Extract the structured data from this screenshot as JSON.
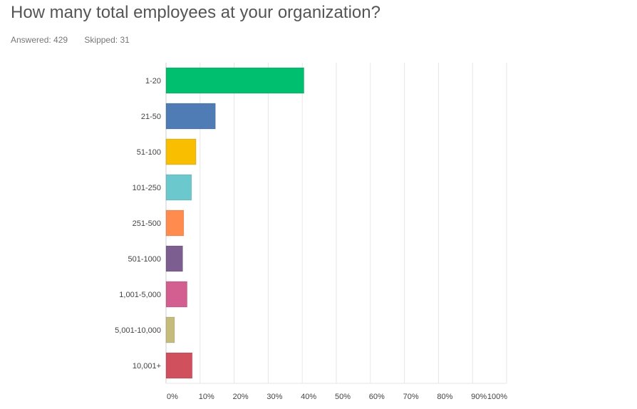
{
  "question": {
    "title": "How many total employees at your organization?",
    "answered": "Answered: 429",
    "skipped": "Skipped: 31"
  },
  "chart_data": {
    "type": "bar",
    "orientation": "horizontal",
    "categories": [
      "1-20",
      "21-50",
      "51-100",
      "101-250",
      "251-500",
      "501-1000",
      "1,001-5,000",
      "5,001-10,000",
      "10,001+"
    ],
    "values": [
      40.5,
      14.5,
      8.8,
      7.5,
      5.2,
      4.9,
      6.2,
      2.5,
      7.7
    ],
    "colors": [
      "#00bf6f",
      "#507cb6",
      "#f9be00",
      "#6bc8cd",
      "#ff8b4f",
      "#7d5e90",
      "#d25f90",
      "#c4bc78",
      "#d0505d"
    ],
    "xlim": [
      0,
      100
    ],
    "x_ticks": [
      "0%",
      "10%",
      "20%",
      "30%",
      "40%",
      "50%",
      "60%",
      "70%",
      "80%",
      "90%",
      "100%"
    ],
    "grid": true,
    "title": "",
    "xlabel": "",
    "ylabel": ""
  }
}
